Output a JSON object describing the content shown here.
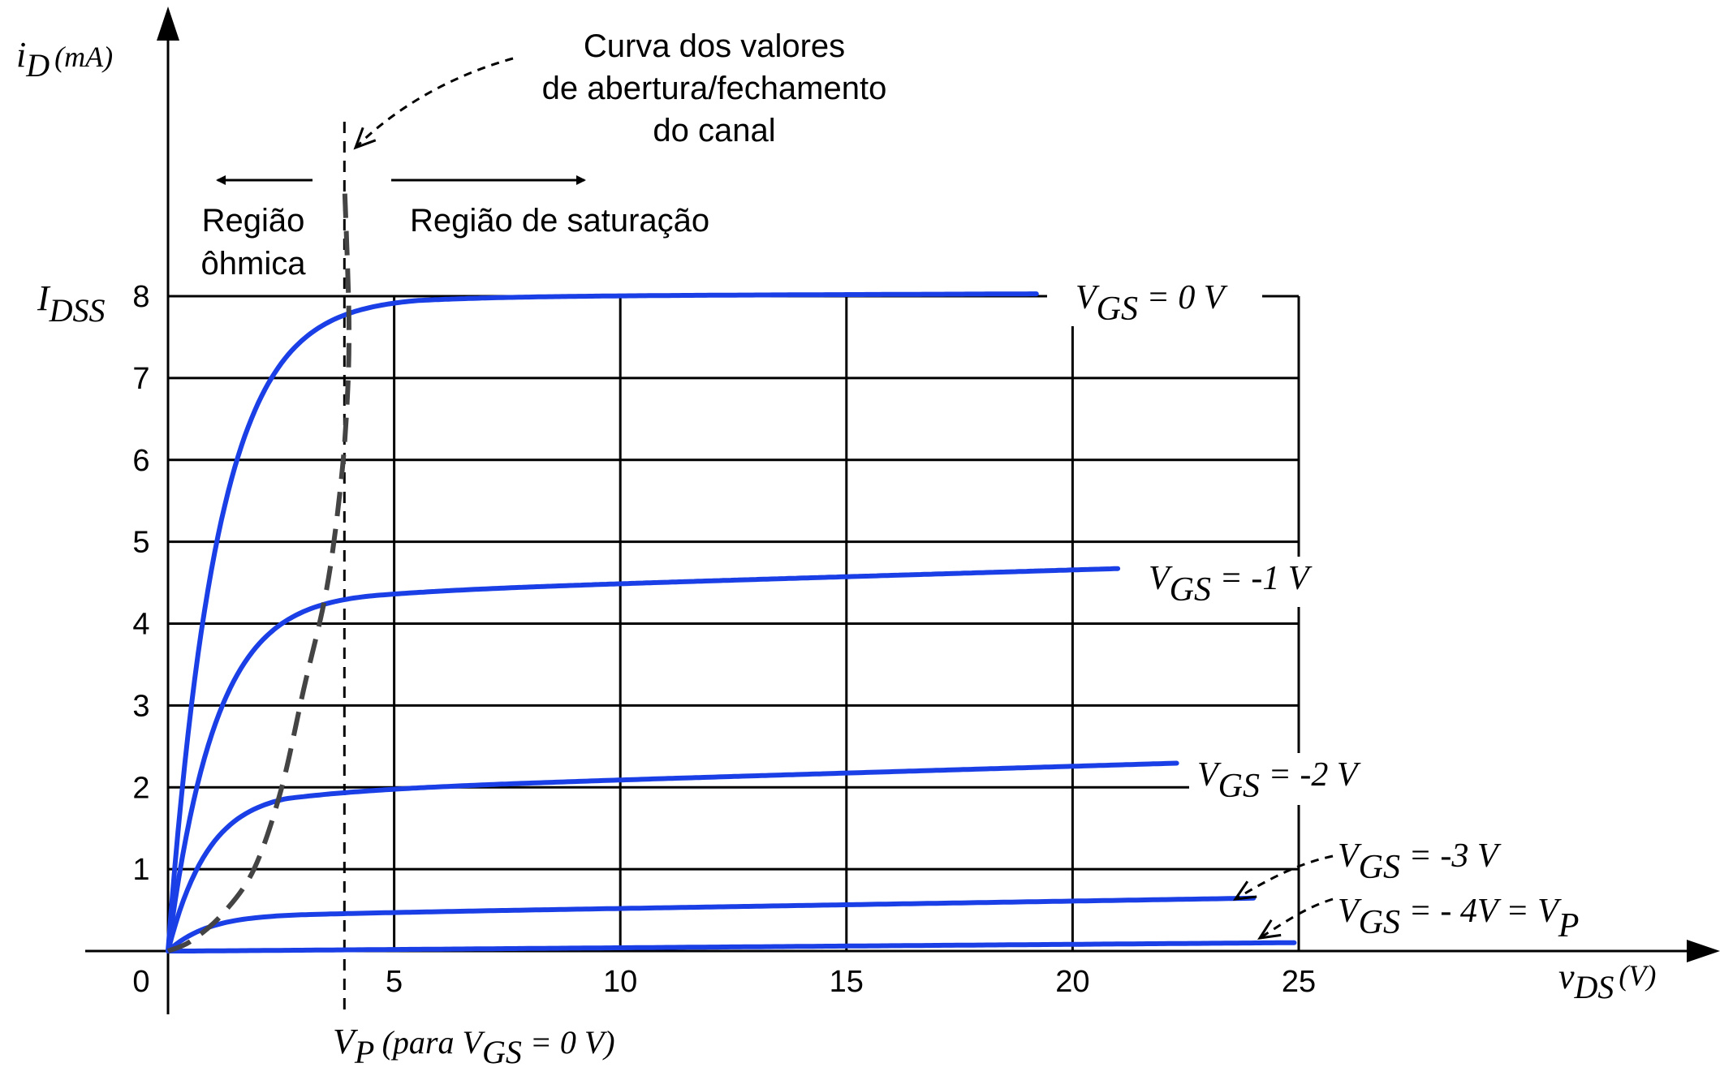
{
  "chart_data": {
    "type": "line",
    "title": "",
    "xlabel": {
      "main": "v",
      "sub": "DS",
      "unit": "(V)"
    },
    "ylabel": {
      "main": "i",
      "sub": "D",
      "unit": "(mA)"
    },
    "xlim": [
      0,
      25
    ],
    "ylim": [
      0,
      8
    ],
    "x_ticks": [
      5,
      10,
      15,
      20,
      25
    ],
    "y_ticks": [
      1,
      2,
      3,
      4,
      5,
      6,
      7,
      8
    ],
    "origin_label": "0",
    "grid": true,
    "idss_label": {
      "main": "I",
      "sub": "DSS"
    },
    "vp_label": {
      "v": "V",
      "p": "P",
      "mid": " (para V",
      "gs": "GS",
      "tail": " = 0 V)"
    },
    "vp_line_x": 3.9,
    "ohmic_label": [
      "Região",
      "ôhmica"
    ],
    "saturation_label": "Região de saturação",
    "curve_note": [
      "Curva dos valores",
      "de abertura/fechamento",
      "do canal"
    ],
    "series_color": "#1a3fe6",
    "boundary_color": "#444444",
    "series": [
      {
        "name": "V_GS = 0 V",
        "label": {
          "pre": "V",
          "sub": "GS",
          "post": " = 0 V"
        },
        "isat": 8.0,
        "tau": 1.1,
        "vpinch": 5.5,
        "slope": 0.0007,
        "xend": 19.2
      },
      {
        "name": "V_GS = -1 V",
        "label": {
          "pre": "V",
          "sub": "GS",
          "post": " = -1 V"
        },
        "isat": 4.4,
        "tau": 1.05,
        "vpinch": 4.5,
        "slope": 0.0055,
        "xend": 21.0
      },
      {
        "name": "V_GS = -2 V",
        "label": {
          "pre": "V",
          "sub": "GS",
          "post": " = -2 V"
        },
        "isat": 1.97,
        "tau": 0.9,
        "vpinch": 2.6,
        "slope": 0.0055,
        "xend": 22.3
      },
      {
        "name": "V_GS = -3 V",
        "label": {
          "pre": "V",
          "sub": "GS",
          "post": " = -3 V"
        },
        "isat": 0.46,
        "tau": 0.9,
        "vpinch": 3.3,
        "slope": 0.003,
        "xend": 24.0
      },
      {
        "name": "V_GS = -4 V = V_P",
        "label": {
          "pre": "V",
          "sub": "GS",
          "post": " = - 4V = V",
          "sub2": "P"
        },
        "isat": 0.0,
        "tau": 1.0,
        "vpinch": 0.5,
        "slope": 0.0014,
        "xend": 24.9
      }
    ],
    "boundary_points": [
      [
        0,
        0
      ],
      [
        0.5,
        0.12
      ],
      [
        1.2,
        0.45
      ],
      [
        1.9,
        1.0
      ],
      [
        2.5,
        1.97
      ],
      [
        3.0,
        3.2
      ],
      [
        3.5,
        4.4
      ],
      [
        3.8,
        5.6
      ],
      [
        3.95,
        6.6
      ],
      [
        4.0,
        7.7
      ],
      [
        3.9,
        9.4
      ]
    ]
  }
}
